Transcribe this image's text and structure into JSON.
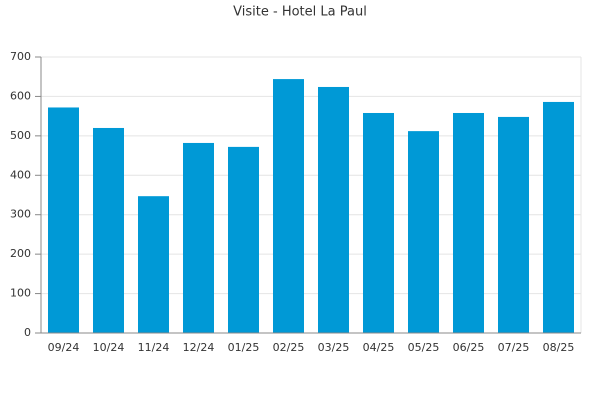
{
  "chart_data": {
    "type": "bar",
    "title": "Visite - Hotel La Paul",
    "categories": [
      "09/24",
      "10/24",
      "11/24",
      "12/24",
      "01/25",
      "02/25",
      "03/25",
      "04/25",
      "05/25",
      "06/25",
      "07/25",
      "08/25"
    ],
    "values": [
      572,
      520,
      347,
      482,
      472,
      644,
      624,
      558,
      512,
      558,
      548,
      586
    ],
    "color": "#0099d6",
    "ylim": [
      0,
      700
    ],
    "yticks": [
      0,
      100,
      200,
      300,
      400,
      500,
      600,
      700
    ],
    "grid": true
  }
}
